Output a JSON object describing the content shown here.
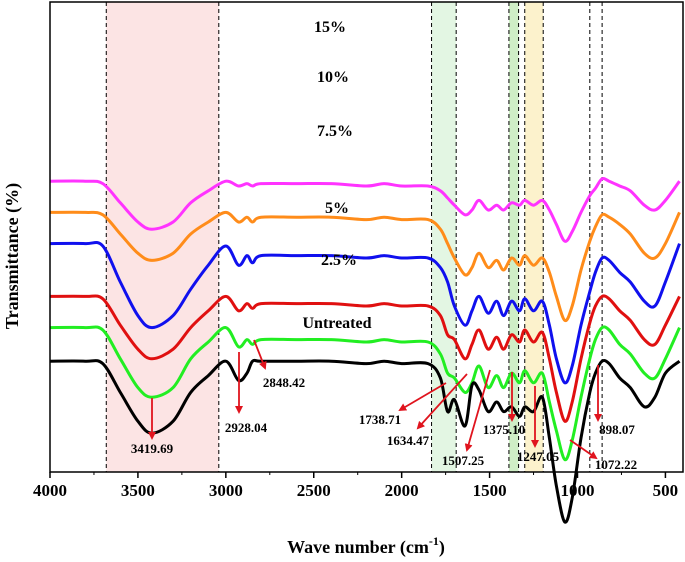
{
  "chart_data": {
    "type": "line",
    "title": "",
    "xlabel": "Wave number (cm",
    "xlabel_sup": "-1",
    "xlabel_end": ")",
    "ylabel": "Transmittance (%)",
    "xlim": [
      4000,
      400
    ],
    "x_reversed": true,
    "xticks": [
      4000,
      3500,
      3000,
      2500,
      2000,
      1500,
      1000,
      500
    ],
    "y_ticks_shown": false,
    "legend": "none",
    "colors": {
      "15%": "#ff33ff",
      "10%": "#ff8c1a",
      "7.5%": "#1010ee",
      "5%": "#e01010",
      "2.5%": "#22ee22",
      "Untreated": "#000000"
    },
    "bands": [
      {
        "from": 3680,
        "to": 3040,
        "color": "#fce4e4"
      },
      {
        "from": 1830,
        "to": 1690,
        "color": "#e3f6e3"
      },
      {
        "from": 1390,
        "to": 1335,
        "color": "#cfeec6"
      },
      {
        "from": 1300,
        "to": 1195,
        "color": "#fcf2cc"
      }
    ],
    "dashed_lines": [
      3680,
      3040,
      1830,
      1690,
      1390,
      1335,
      1300,
      1195,
      930,
      860
    ],
    "series_labels": [
      "15%",
      "10%",
      "7.5%",
      "5%",
      "2.5%",
      "Untreated"
    ],
    "peak_labels": [
      "3419.69",
      "2928.04",
      "2848.42",
      "1738.71",
      "1634.47",
      "1507.25",
      "1375.10",
      "1247.05",
      "1072.22",
      "898.07"
    ],
    "series": [
      {
        "name": "15%",
        "x": [
          4000,
          3800,
          3700,
          3600,
          3500,
          3420,
          3300,
          3200,
          3100,
          3000,
          2928,
          2880,
          2848,
          2800,
          2600,
          2400,
          2200,
          2100,
          2000,
          1850,
          1780,
          1739,
          1700,
          1640,
          1600,
          1560,
          1508,
          1460,
          1420,
          1375,
          1330,
          1300,
          1250,
          1200,
          1160,
          1120,
          1072,
          1030,
          980,
          930,
          898,
          860,
          820,
          760,
          700,
          620,
          560,
          500,
          420
        ],
        "values": [
          62,
          62,
          61,
          53,
          45,
          42,
          45,
          53,
          58,
          62,
          60,
          61,
          60,
          61,
          61,
          61,
          60,
          61,
          60,
          60,
          58,
          55,
          52,
          48,
          50,
          54,
          50,
          52,
          50,
          53,
          52,
          54,
          52,
          54,
          50,
          44,
          37,
          41,
          49,
          56,
          59,
          63,
          62,
          60,
          58,
          52,
          50,
          54,
          62
        ]
      },
      {
        "name": "10%",
        "x": [
          4000,
          3800,
          3700,
          3600,
          3500,
          3420,
          3300,
          3200,
          3100,
          3000,
          2928,
          2880,
          2848,
          2800,
          2600,
          2400,
          2200,
          2100,
          2000,
          1850,
          1780,
          1739,
          1700,
          1640,
          1600,
          1560,
          1508,
          1460,
          1420,
          1375,
          1330,
          1300,
          1250,
          1200,
          1160,
          1120,
          1072,
          1030,
          980,
          930,
          898,
          860,
          820,
          760,
          700,
          620,
          560,
          500,
          420
        ],
        "values": [
          49,
          49,
          48,
          40,
          32,
          29,
          32,
          40,
          45,
          49,
          45,
          47,
          45,
          47,
          47,
          47,
          46,
          47,
          46,
          46,
          42,
          36,
          30,
          23,
          26,
          32,
          26,
          29,
          25,
          30,
          27,
          31,
          27,
          30,
          24,
          14,
          4,
          10,
          25,
          37,
          43,
          48,
          47,
          44,
          40,
          32,
          30,
          36,
          49
        ]
      },
      {
        "name": "7.5%",
        "x": [
          4000,
          3800,
          3700,
          3600,
          3500,
          3420,
          3300,
          3200,
          3100,
          3000,
          2928,
          2880,
          2848,
          2800,
          2600,
          2400,
          2200,
          2100,
          2000,
          1850,
          1780,
          1739,
          1700,
          1640,
          1600,
          1560,
          1508,
          1460,
          1420,
          1375,
          1330,
          1300,
          1250,
          1200,
          1160,
          1120,
          1072,
          1030,
          980,
          930,
          898,
          860,
          820,
          760,
          700,
          620,
          560,
          500,
          420
        ],
        "values": [
          36,
          36,
          35,
          20,
          6,
          1,
          6,
          17,
          27,
          35,
          27,
          31,
          28,
          31,
          31,
          31,
          30,
          31,
          30,
          30,
          26,
          20,
          10,
          2,
          8,
          14,
          7,
          12,
          6,
          12,
          8,
          13,
          8,
          12,
          2,
          -12,
          -22,
          -15,
          2,
          16,
          24,
          30,
          29,
          24,
          20,
          12,
          10,
          20,
          36
        ]
      },
      {
        "name": "5%",
        "x": [
          4000,
          3800,
          3700,
          3600,
          3500,
          3420,
          3300,
          3200,
          3100,
          3000,
          2928,
          2880,
          2848,
          2800,
          2600,
          2400,
          2200,
          2100,
          2000,
          1850,
          1780,
          1739,
          1700,
          1640,
          1600,
          1560,
          1508,
          1460,
          1420,
          1375,
          1330,
          1300,
          1250,
          1200,
          1160,
          1120,
          1072,
          1030,
          980,
          930,
          898,
          860,
          820,
          760,
          700,
          620,
          560,
          500,
          420
        ],
        "values": [
          14,
          14,
          13,
          2,
          -8,
          -12,
          -8,
          1,
          8,
          14,
          8,
          11,
          9,
          11,
          11,
          11,
          10,
          11,
          10,
          10,
          6,
          -2,
          -4,
          -12,
          -6,
          0,
          -8,
          -3,
          -8,
          -2,
          -5,
          0,
          -5,
          -1,
          -12,
          -26,
          -38,
          -30,
          -12,
          3,
          10,
          14,
          13,
          8,
          4,
          -4,
          -6,
          2,
          14
        ]
      },
      {
        "name": "2.5%",
        "x": [
          4000,
          3800,
          3700,
          3600,
          3500,
          3420,
          3300,
          3200,
          3100,
          3000,
          2928,
          2880,
          2848,
          2800,
          2600,
          2400,
          2200,
          2100,
          2000,
          1850,
          1780,
          1739,
          1700,
          1640,
          1600,
          1560,
          1508,
          1460,
          1420,
          1375,
          1330,
          1300,
          1250,
          1200,
          1160,
          1120,
          1072,
          1030,
          980,
          930,
          898,
          860,
          820,
          760,
          700,
          620,
          560,
          500,
          420
        ],
        "values": [
          1,
          1,
          0,
          -12,
          -24,
          -28,
          -24,
          -12,
          -5,
          1,
          -7,
          -4,
          -6,
          -4,
          -4,
          -4,
          -5,
          -4,
          -5,
          -5,
          -10,
          -18,
          -20,
          -26,
          -22,
          -15,
          -24,
          -19,
          -24,
          -18,
          -22,
          -17,
          -22,
          -18,
          -30,
          -42,
          -54,
          -46,
          -28,
          -12,
          -4,
          1,
          0,
          -6,
          -10,
          -18,
          -20,
          -12,
          1
        ]
      },
      {
        "name": "Untreated",
        "x": [
          4000,
          3800,
          3700,
          3600,
          3500,
          3420,
          3300,
          3200,
          3100,
          3000,
          2928,
          2880,
          2848,
          2800,
          2600,
          2400,
          2200,
          2100,
          2000,
          1850,
          1780,
          1739,
          1700,
          1640,
          1600,
          1560,
          1508,
          1460,
          1420,
          1375,
          1330,
          1300,
          1250,
          1200,
          1160,
          1120,
          1072,
          1030,
          980,
          930,
          898,
          860,
          820,
          760,
          700,
          620,
          560,
          500,
          420
        ],
        "values": [
          -13,
          -13,
          -14,
          -26,
          -38,
          -43,
          -38,
          -26,
          -19,
          -13,
          -21,
          -18,
          -13,
          -13,
          -13,
          -13,
          -14,
          -13,
          -14,
          -14,
          -20,
          -34,
          -29,
          -40,
          -23,
          -25,
          -34,
          -30,
          -34,
          -32,
          -36,
          -32,
          -34,
          -28,
          -45,
          -65,
          -80,
          -70,
          -45,
          -26,
          -18,
          -13,
          -14,
          -20,
          -24,
          -32,
          -28,
          -18,
          -13
        ]
      }
    ]
  }
}
